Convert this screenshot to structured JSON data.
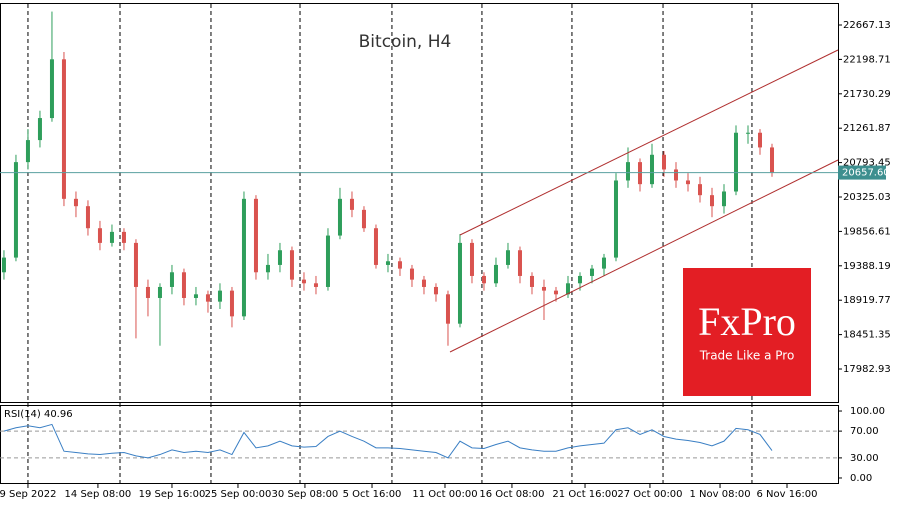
{
  "chart_data": {
    "type": "candlestick",
    "title": "Bitcoin, H4",
    "up_color": "#2e9e5b",
    "down_color": "#d9534f",
    "candles": [
      [
        19300,
        19600,
        19200,
        19500
      ],
      [
        19500,
        20900,
        19450,
        20800
      ],
      [
        20800,
        21250,
        20700,
        21100
      ],
      [
        21100,
        21500,
        21000,
        21400
      ],
      [
        21400,
        22850,
        21350,
        22200
      ],
      [
        22200,
        22300,
        20200,
        20300
      ],
      [
        20300,
        20400,
        20050,
        20200
      ],
      [
        20200,
        20280,
        19800,
        19900
      ],
      [
        19900,
        20000,
        19600,
        19700
      ],
      [
        19700,
        19950,
        19650,
        19850
      ],
      [
        19850,
        19900,
        19600,
        19700
      ],
      [
        19700,
        19750,
        18400,
        19100
      ],
      [
        19100,
        19200,
        18700,
        18950
      ],
      [
        18950,
        19150,
        18300,
        19100
      ],
      [
        19100,
        19400,
        19000,
        19300
      ],
      [
        19300,
        19350,
        18850,
        18950
      ],
      [
        18950,
        19100,
        18850,
        19000
      ],
      [
        19000,
        19050,
        18750,
        18900
      ],
      [
        18900,
        19150,
        18800,
        19050
      ],
      [
        19050,
        19100,
        18550,
        18700
      ],
      [
        18700,
        20400,
        18650,
        20300
      ],
      [
        20300,
        20350,
        19200,
        19300
      ],
      [
        19300,
        19550,
        19200,
        19400
      ],
      [
        19400,
        19700,
        19300,
        19600
      ],
      [
        19600,
        19650,
        19100,
        19200
      ],
      [
        19200,
        19300,
        19050,
        19150
      ],
      [
        19150,
        19250,
        19000,
        19100
      ],
      [
        19100,
        19900,
        19050,
        19800
      ],
      [
        19800,
        20450,
        19750,
        20300
      ],
      [
        20300,
        20400,
        20050,
        20150
      ],
      [
        20150,
        20200,
        19850,
        19900
      ],
      [
        19900,
        19950,
        19350,
        19400
      ],
      [
        19400,
        19550,
        19300,
        19450
      ],
      [
        19450,
        19500,
        19250,
        19350
      ],
      [
        19350,
        19400,
        19100,
        19200
      ],
      [
        19200,
        19250,
        19000,
        19100
      ],
      [
        19100,
        19150,
        18900,
        19000
      ],
      [
        19000,
        19050,
        18300,
        18600
      ],
      [
        18600,
        19820,
        18550,
        19700
      ],
      [
        19700,
        19750,
        19150,
        19250
      ],
      [
        19250,
        19300,
        19050,
        19150
      ],
      [
        19150,
        19500,
        19100,
        19400
      ],
      [
        19400,
        19700,
        19350,
        19600
      ],
      [
        19600,
        19650,
        19150,
        19250
      ],
      [
        19250,
        19300,
        19000,
        19100
      ],
      [
        19100,
        19200,
        18650,
        19050
      ],
      [
        19050,
        19100,
        18900,
        19000
      ],
      [
        19000,
        19250,
        18950,
        19150
      ],
      [
        19150,
        19300,
        19050,
        19250
      ],
      [
        19250,
        19400,
        19150,
        19350
      ],
      [
        19350,
        19550,
        19250,
        19500
      ],
      [
        19500,
        20650,
        19450,
        20550
      ],
      [
        20550,
        21000,
        20450,
        20800
      ],
      [
        20800,
        20850,
        20400,
        20500
      ],
      [
        20500,
        21050,
        20450,
        20900
      ],
      [
        20900,
        20950,
        20600,
        20700
      ],
      [
        20700,
        20800,
        20450,
        20550
      ],
      [
        20550,
        20650,
        20400,
        20500
      ],
      [
        20500,
        20600,
        20250,
        20350
      ],
      [
        20350,
        20450,
        20050,
        20200
      ],
      [
        20200,
        20500,
        20100,
        20400
      ],
      [
        20400,
        21300,
        20350,
        21200
      ],
      [
        21200,
        21300,
        21050,
        21200
      ],
      [
        21200,
        21250,
        20900,
        21000
      ],
      [
        21000,
        21050,
        20600,
        20660
      ]
    ],
    "xlim": [
      -0.33,
      69.5
    ],
    "xticks": [
      {
        "value": 2,
        "label": "9 Sep 2022"
      },
      {
        "value": 7.83,
        "label": "14 Sep 08:00"
      },
      {
        "value": 14,
        "label": "19 Sep 16:00"
      },
      {
        "value": 19.5,
        "label": "25 Sep 00:00"
      },
      {
        "value": 25.08,
        "label": "30 Sep 08:00"
      },
      {
        "value": 30.67,
        "label": "5 Oct 16:00"
      },
      {
        "value": 36.75,
        "label": "11 Oct 00:00"
      },
      {
        "value": 42.33,
        "label": "16 Oct 08:00"
      },
      {
        "value": 48.42,
        "label": "21 Oct 16:00"
      },
      {
        "value": 53.83,
        "label": "27 Oct 00:00"
      },
      {
        "value": 59.67,
        "label": "1 Nov 08:00"
      },
      {
        "value": 65.25,
        "label": "6 Nov 16:00"
      }
    ],
    "xgrid": [
      2,
      9.67,
      17.25,
      24.67,
      32.33,
      39.83,
      47.33,
      54.92,
      62.33
    ],
    "ylim": [
      17560.8,
      22939.5
    ],
    "yticks": [
      22667.13,
      22198.71,
      21730.29,
      21261.87,
      20793.45,
      20325.03,
      19856.61,
      19388.19,
      18919.77,
      18451.35,
      17982.93
    ],
    "last_price": {
      "value": 20657.6,
      "label": "20657.60"
    },
    "rsi": {
      "label": "RSI(14) 40.96",
      "color": "#3a7fc4",
      "values": [
        70,
        75,
        78,
        75,
        80,
        40,
        38,
        36,
        35,
        37,
        38,
        33,
        30,
        35,
        42,
        38,
        40,
        38,
        42,
        35,
        68,
        45,
        48,
        55,
        48,
        46,
        47,
        62,
        70,
        62,
        55,
        45,
        45,
        44,
        42,
        40,
        38,
        30,
        55,
        45,
        44,
        50,
        55,
        45,
        42,
        40,
        40,
        45,
        48,
        50,
        52,
        72,
        75,
        65,
        72,
        62,
        58,
        56,
        53,
        48,
        55,
        74,
        72,
        65,
        40.96
      ],
      "ylim": [
        -9,
        109
      ],
      "yticks": [
        {
          "value": 100,
          "label": "100.00"
        },
        {
          "value": 70,
          "label": "70.00"
        },
        {
          "value": 30,
          "label": "30.00"
        },
        {
          "value": 0,
          "label": "0.00"
        }
      ],
      "levels": [
        70,
        30
      ]
    },
    "logo": {
      "name": "FxPro",
      "slogan": "Trade Like a Pro"
    }
  }
}
